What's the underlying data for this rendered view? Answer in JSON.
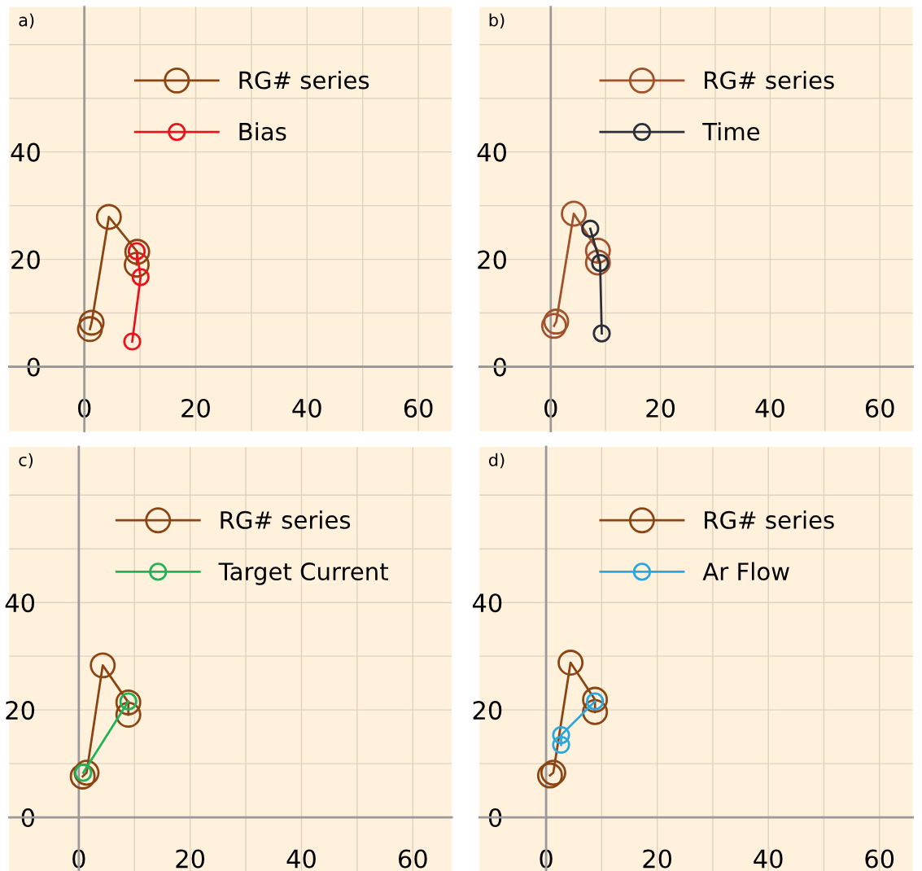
{
  "chart_data": [
    {
      "type": "line",
      "title": "a)",
      "marker": "circle",
      "grid": true,
      "legend": "top",
      "xlim": [
        -13.5,
        66
      ],
      "ylim": [
        -12,
        67
      ],
      "xticks": [
        0,
        {
          "value": 10,
          "label": null
        },
        20,
        {
          "value": 30,
          "label": null
        },
        40,
        {
          "value": 50,
          "label": null
        },
        60
      ],
      "yticks": [
        0,
        {
          "value": 10,
          "label": null
        },
        20,
        {
          "value": 30,
          "label": null
        },
        40,
        {
          "value": 50,
          "label": null
        },
        {
          "value": 60,
          "label": null
        }
      ],
      "series": [
        {
          "name": "RG# series",
          "color": "#8b4513",
          "x": [
            1,
            1.3,
            4.4,
            9.5,
            9.4
          ],
          "values": [
            7,
            8.2,
            27.9,
            21.4,
            19
          ]
        },
        {
          "name": "Bias",
          "color": "#e8141e",
          "x": [
            8.6,
            10.1,
            9.4
          ],
          "values": [
            4.7,
            16.7,
            21.5
          ]
        }
      ]
    },
    {
      "type": "line",
      "title": "b)",
      "marker": "circle",
      "grid": true,
      "legend": "top",
      "xlim": [
        -13,
        66
      ],
      "ylim": [
        -12,
        67
      ],
      "xticks": [
        0,
        {
          "value": 10,
          "label": null
        },
        20,
        {
          "value": 30,
          "label": null
        },
        40,
        {
          "value": 50,
          "label": null
        },
        60
      ],
      "yticks": [
        0,
        {
          "value": 10,
          "label": null
        },
        20,
        {
          "value": 30,
          "label": null
        },
        40,
        {
          "value": 50,
          "label": null
        },
        {
          "value": 60,
          "label": null
        }
      ],
      "series": [
        {
          "name": "RG# series",
          "color": "#a0522d",
          "x": [
            0.6,
            1,
            4.2,
            8.6,
            8.6
          ],
          "values": [
            7.6,
            8.4,
            28.5,
            21.6,
            19.4
          ]
        },
        {
          "name": "Time",
          "color": "#2b2f3a",
          "x": [
            7.2,
            9,
            9.3
          ],
          "values": [
            25.7,
            19.3,
            6.2
          ]
        }
      ]
    },
    {
      "type": "line",
      "title": "c)",
      "marker": "circle",
      "grid": true,
      "legend": "top",
      "xlim": [
        -12.5,
        67
      ],
      "ylim": [
        -10,
        69
      ],
      "xticks": [
        0,
        {
          "value": 10,
          "label": null
        },
        20,
        {
          "value": 30,
          "label": null
        },
        40,
        {
          "value": 50,
          "label": null
        },
        60
      ],
      "yticks": [
        0,
        {
          "value": 10,
          "label": null
        },
        20,
        {
          "value": 30,
          "label": null
        },
        40,
        {
          "value": 50,
          "label": null
        },
        {
          "value": 60,
          "label": null
        }
      ],
      "series": [
        {
          "name": "RG# series",
          "color": "#8b4513",
          "x": [
            0.7,
            1.4,
            4.3,
            8.9,
            8.9
          ],
          "values": [
            7.6,
            8.3,
            28.3,
            21.4,
            19.1
          ]
        },
        {
          "name": "Target Current",
          "color": "#22b35a",
          "x": [
            0.8,
            8.9
          ],
          "values": [
            8.3,
            21.6
          ]
        }
      ]
    },
    {
      "type": "line",
      "title": "d)",
      "marker": "circle",
      "grid": true,
      "legend": "top",
      "xlim": [
        -12,
        66
      ],
      "ylim": [
        -10,
        69
      ],
      "xticks": [
        0,
        {
          "value": 10,
          "label": null
        },
        20,
        {
          "value": 30,
          "label": null
        },
        40,
        {
          "value": 50,
          "label": null
        },
        60
      ],
      "yticks": [
        0,
        {
          "value": 10,
          "label": null
        },
        20,
        {
          "value": 30,
          "label": null
        },
        40,
        {
          "value": 50,
          "label": null
        },
        {
          "value": 60,
          "label": null
        }
      ],
      "series": [
        {
          "name": "RG# series",
          "color": "#8b4513",
          "x": [
            0.7,
            1.3,
            4.4,
            8.8,
            8.8
          ],
          "values": [
            7.8,
            8.3,
            28.8,
            21.9,
            19.6
          ]
        },
        {
          "name": "Ar Flow",
          "color": "#29a8e0",
          "x": [
            2.7,
            2.7,
            8.8
          ],
          "values": [
            13.5,
            15.3,
            21.6
          ]
        }
      ]
    }
  ]
}
